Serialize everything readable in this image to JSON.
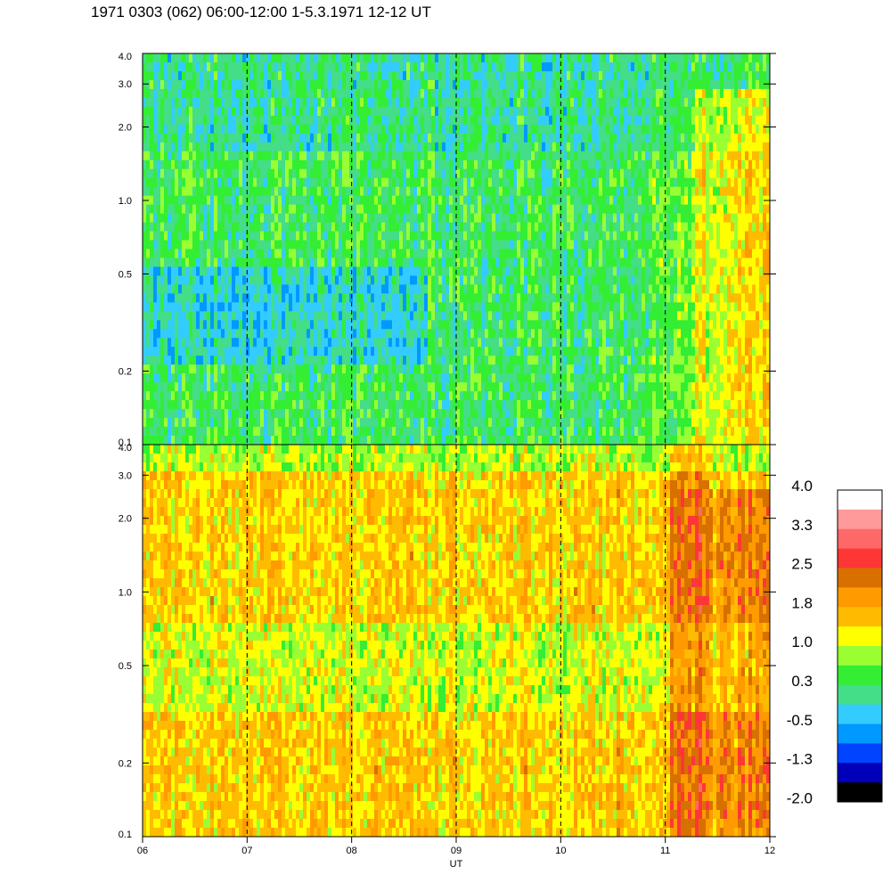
{
  "title": "1971 0303 (062) 06:00-12:00 1-5.3.1971  12-12 UT",
  "chart_data": {
    "type": "heatmap",
    "title": "1971 0303 (062) 06:00-12:00 1-5.3.1971  12-12 UT",
    "xlabel": "UT",
    "ylabel": "",
    "x_range": [
      6,
      12
    ],
    "x_ticks": [
      "06",
      "07",
      "08",
      "09",
      "10",
      "11",
      "12"
    ],
    "x_dashed_gridlines": [
      7,
      8,
      9,
      10,
      11
    ],
    "y_scale": "log",
    "y_range": [
      0.1,
      4.0
    ],
    "y_ticks": [
      "0.1",
      "0.2",
      "0.5",
      "1.0",
      "2.0",
      "3.0",
      "4.0"
    ],
    "panels": [
      {
        "position": "upper",
        "dominant_level_range": [
          -0.5,
          1.0
        ]
      },
      {
        "position": "lower",
        "dominant_level_range": [
          1.0,
          2.5
        ]
      }
    ],
    "colorbar": {
      "labels": [
        "4.0",
        "3.3",
        "2.5",
        "1.8",
        "1.0",
        "0.3",
        "-0.5",
        "-1.3",
        "-2.0"
      ],
      "colors": [
        "#ffffff",
        "#ff9a9a",
        "#ff6868",
        "#ff3636",
        "#d87000",
        "#ff9a00",
        "#ffbb00",
        "#ffff00",
        "#99ff33",
        "#33ee33",
        "#44dd88",
        "#33ccff",
        "#0099ff",
        "#0044ff",
        "#0000bb",
        "#000000"
      ]
    }
  }
}
